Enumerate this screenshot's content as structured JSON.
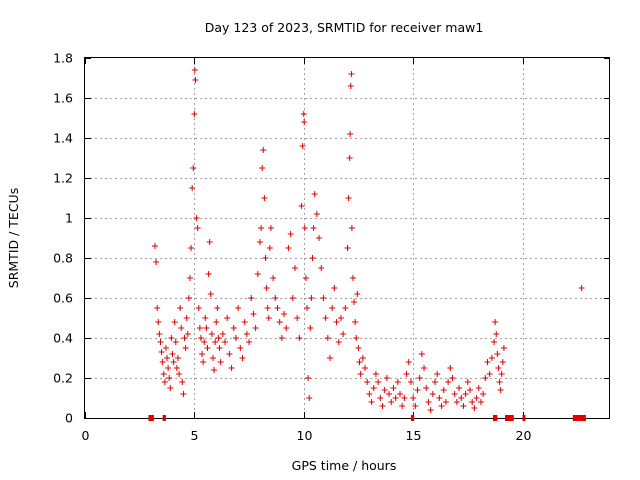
{
  "chart_data": {
    "type": "scatter",
    "title": "Day 123 of 2023, SRMTID for receiver maw1",
    "xlabel": "GPS time / hours",
    "ylabel": "SRMTID / TECUs",
    "xlim": [
      0,
      24
    ],
    "ylim": [
      0,
      1.8
    ],
    "xticks": [
      0,
      5,
      10,
      15,
      20
    ],
    "yticks": [
      0,
      0.2,
      0.4,
      0.6,
      0.8,
      1,
      1.2,
      1.4,
      1.6,
      1.8
    ],
    "grid": true,
    "marker": "+",
    "color": "#e00000",
    "series": [
      {
        "name": "maw1",
        "points": [
          [
            3.2,
            0.86
          ],
          [
            3.25,
            0.78
          ],
          [
            3.3,
            0.55
          ],
          [
            3.35,
            0.48
          ],
          [
            3.4,
            0.42
          ],
          [
            3.45,
            0.38
          ],
          [
            3.5,
            0.33
          ],
          [
            3.55,
            0.28
          ],
          [
            3.6,
            0.22
          ],
          [
            3.65,
            0.18
          ],
          [
            3.7,
            0.35
          ],
          [
            3.75,
            0.3
          ],
          [
            3.8,
            0.25
          ],
          [
            3.85,
            0.2
          ],
          [
            3.9,
            0.15
          ],
          [
            3.95,
            0.4
          ],
          [
            4.0,
            0.32
          ],
          [
            4.05,
            0.28
          ],
          [
            4.1,
            0.48
          ],
          [
            4.15,
            0.38
          ],
          [
            4.2,
            0.25
          ],
          [
            4.25,
            0.3
          ],
          [
            4.3,
            0.22
          ],
          [
            4.35,
            0.55
          ],
          [
            4.4,
            0.45
          ],
          [
            4.45,
            0.18
          ],
          [
            4.5,
            0.12
          ],
          [
            4.55,
            0.4
          ],
          [
            4.6,
            0.35
          ],
          [
            4.65,
            0.5
          ],
          [
            4.7,
            0.42
          ],
          [
            4.75,
            0.6
          ],
          [
            4.8,
            0.7
          ],
          [
            4.85,
            0.85
          ],
          [
            4.9,
            1.15
          ],
          [
            4.95,
            1.25
          ],
          [
            5.0,
            1.52
          ],
          [
            5.02,
            1.74
          ],
          [
            5.05,
            1.69
          ],
          [
            5.1,
            1.0
          ],
          [
            5.15,
            0.95
          ],
          [
            5.2,
            0.55
          ],
          [
            5.25,
            0.45
          ],
          [
            5.3,
            0.4
          ],
          [
            5.35,
            0.32
          ],
          [
            5.4,
            0.28
          ],
          [
            5.45,
            0.38
          ],
          [
            5.5,
            0.5
          ],
          [
            5.55,
            0.45
          ],
          [
            5.6,
            0.35
          ],
          [
            5.65,
            0.72
          ],
          [
            5.7,
            0.88
          ],
          [
            5.75,
            0.62
          ],
          [
            5.8,
            0.42
          ],
          [
            5.85,
            0.3
          ],
          [
            5.9,
            0.24
          ],
          [
            5.95,
            0.38
          ],
          [
            6.0,
            0.48
          ],
          [
            6.05,
            0.55
          ],
          [
            6.1,
            0.4
          ],
          [
            6.15,
            0.35
          ],
          [
            6.2,
            0.28
          ],
          [
            6.3,
            0.42
          ],
          [
            6.4,
            0.38
          ],
          [
            6.5,
            0.5
          ],
          [
            6.6,
            0.32
          ],
          [
            6.7,
            0.25
          ],
          [
            6.8,
            0.45
          ],
          [
            6.9,
            0.4
          ],
          [
            7.0,
            0.55
          ],
          [
            7.1,
            0.35
          ],
          [
            7.2,
            0.3
          ],
          [
            7.3,
            0.48
          ],
          [
            7.4,
            0.42
          ],
          [
            7.5,
            0.38
          ],
          [
            7.6,
            0.6
          ],
          [
            7.7,
            0.52
          ],
          [
            7.8,
            0.45
          ],
          [
            7.9,
            0.72
          ],
          [
            8.0,
            0.88
          ],
          [
            8.05,
            0.95
          ],
          [
            8.1,
            1.25
          ],
          [
            8.15,
            1.34
          ],
          [
            8.2,
            1.1
          ],
          [
            8.25,
            0.8
          ],
          [
            8.3,
            0.65
          ],
          [
            8.35,
            0.55
          ],
          [
            8.4,
            0.5
          ],
          [
            8.45,
            0.85
          ],
          [
            8.5,
            0.95
          ],
          [
            8.6,
            0.7
          ],
          [
            8.7,
            0.6
          ],
          [
            8.8,
            0.55
          ],
          [
            8.9,
            0.48
          ],
          [
            9.0,
            0.4
          ],
          [
            9.1,
            0.52
          ],
          [
            9.2,
            0.45
          ],
          [
            9.3,
            0.85
          ],
          [
            9.4,
            0.92
          ],
          [
            9.5,
            0.6
          ],
          [
            9.6,
            0.75
          ],
          [
            9.7,
            0.5
          ],
          [
            9.8,
            0.4
          ],
          [
            9.9,
            1.06
          ],
          [
            9.95,
            1.36
          ],
          [
            10.0,
            1.52
          ],
          [
            10.02,
            1.48
          ],
          [
            10.05,
            0.95
          ],
          [
            10.1,
            0.7
          ],
          [
            10.15,
            0.55
          ],
          [
            10.2,
            0.2
          ],
          [
            10.25,
            0.1
          ],
          [
            10.3,
            0.45
          ],
          [
            10.35,
            0.6
          ],
          [
            10.4,
            0.8
          ],
          [
            10.45,
            0.95
          ],
          [
            10.5,
            1.12
          ],
          [
            10.6,
            1.02
          ],
          [
            10.7,
            0.9
          ],
          [
            10.8,
            0.75
          ],
          [
            10.9,
            0.6
          ],
          [
            11.0,
            0.5
          ],
          [
            11.1,
            0.4
          ],
          [
            11.2,
            0.3
          ],
          [
            11.3,
            0.55
          ],
          [
            11.4,
            0.65
          ],
          [
            11.5,
            0.48
          ],
          [
            11.6,
            0.38
          ],
          [
            11.7,
            0.5
          ],
          [
            11.8,
            0.42
          ],
          [
            11.9,
            0.55
          ],
          [
            12.0,
            0.85
          ],
          [
            12.05,
            1.1
          ],
          [
            12.1,
            1.3
          ],
          [
            12.12,
            1.42
          ],
          [
            12.15,
            1.66
          ],
          [
            12.18,
            1.72
          ],
          [
            12.2,
            0.95
          ],
          [
            12.25,
            0.7
          ],
          [
            12.3,
            0.58
          ],
          [
            12.35,
            0.48
          ],
          [
            12.4,
            0.4
          ],
          [
            12.45,
            0.62
          ],
          [
            12.5,
            0.35
          ],
          [
            12.55,
            0.28
          ],
          [
            12.6,
            0.22
          ],
          [
            12.7,
            0.3
          ],
          [
            12.8,
            0.25
          ],
          [
            12.9,
            0.18
          ],
          [
            13.0,
            0.12
          ],
          [
            13.1,
            0.08
          ],
          [
            13.2,
            0.15
          ],
          [
            13.3,
            0.22
          ],
          [
            13.4,
            0.18
          ],
          [
            13.5,
            0.1
          ],
          [
            13.6,
            0.06
          ],
          [
            13.7,
            0.14
          ],
          [
            13.8,
            0.2
          ],
          [
            13.9,
            0.12
          ],
          [
            14.0,
            0.08
          ],
          [
            14.1,
            0.15
          ],
          [
            14.2,
            0.1
          ],
          [
            14.3,
            0.18
          ],
          [
            14.4,
            0.12
          ],
          [
            14.5,
            0.06
          ],
          [
            14.6,
            0.1
          ],
          [
            14.7,
            0.22
          ],
          [
            14.8,
            0.28
          ],
          [
            14.9,
            0.18
          ],
          [
            15.0,
            0.1
          ],
          [
            15.1,
            0.06
          ],
          [
            15.2,
            0.14
          ],
          [
            15.3,
            0.2
          ],
          [
            15.4,
            0.32
          ],
          [
            15.5,
            0.25
          ],
          [
            15.6,
            0.15
          ],
          [
            15.7,
            0.08
          ],
          [
            15.8,
            0.04
          ],
          [
            15.9,
            0.12
          ],
          [
            16.0,
            0.18
          ],
          [
            16.1,
            0.22
          ],
          [
            16.2,
            0.1
          ],
          [
            16.3,
            0.06
          ],
          [
            16.4,
            0.14
          ],
          [
            16.5,
            0.08
          ],
          [
            16.6,
            0.18
          ],
          [
            16.7,
            0.25
          ],
          [
            16.8,
            0.2
          ],
          [
            16.9,
            0.12
          ],
          [
            17.0,
            0.08
          ],
          [
            17.1,
            0.15
          ],
          [
            17.2,
            0.1
          ],
          [
            17.3,
            0.06
          ],
          [
            17.4,
            0.12
          ],
          [
            17.5,
            0.18
          ],
          [
            17.6,
            0.14
          ],
          [
            17.7,
            0.08
          ],
          [
            17.8,
            0.05
          ],
          [
            17.9,
            0.1
          ],
          [
            18.0,
            0.15
          ],
          [
            18.1,
            0.08
          ],
          [
            18.2,
            0.12
          ],
          [
            18.3,
            0.2
          ],
          [
            18.4,
            0.28
          ],
          [
            18.5,
            0.22
          ],
          [
            18.6,
            0.3
          ],
          [
            18.7,
            0.38
          ],
          [
            18.75,
            0.48
          ],
          [
            18.8,
            0.42
          ],
          [
            18.85,
            0.32
          ],
          [
            18.9,
            0.25
          ],
          [
            18.95,
            0.18
          ],
          [
            19.0,
            0.14
          ],
          [
            19.05,
            0.22
          ],
          [
            19.1,
            0.28
          ],
          [
            19.15,
            0.35
          ],
          [
            22.7,
            0.65
          ]
        ]
      }
    ],
    "gaps": [
      [
        2.9,
        3.15
      ],
      [
        3.55,
        3.7
      ],
      [
        14.9,
        15.05
      ],
      [
        18.65,
        18.85
      ],
      [
        19.2,
        19.6
      ],
      [
        20.0,
        20.1
      ],
      [
        22.3,
        22.9
      ]
    ]
  }
}
